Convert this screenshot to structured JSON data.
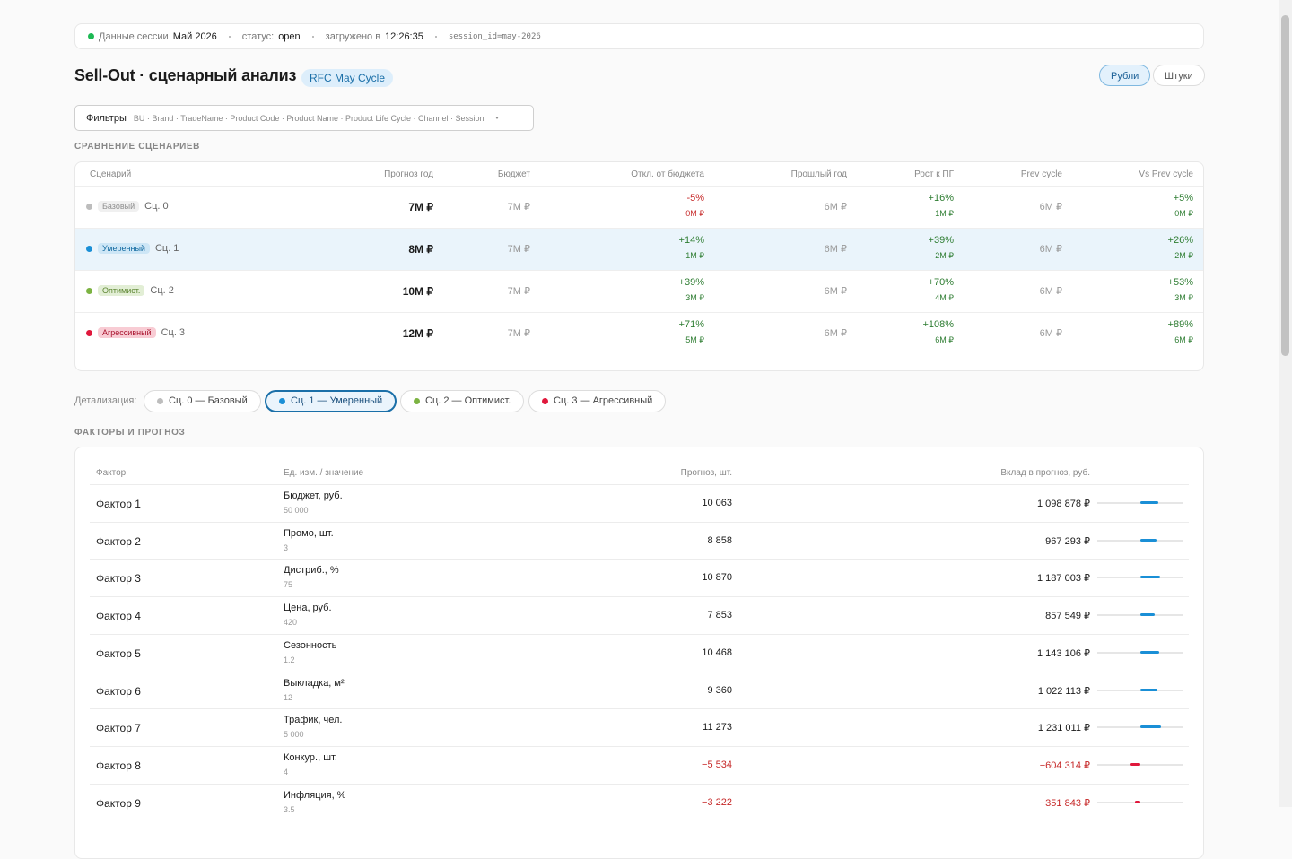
{
  "session": {
    "label": "Данные сессии",
    "period": "Май 2026",
    "status_label": "статус:",
    "status": "open",
    "loaded_label": "загружено в",
    "loaded_time": "12:26:35",
    "session_id": "session_id=may-2026"
  },
  "header": {
    "title": "Sell-Out · сценарный анализ",
    "badge": "RFC May Cycle",
    "units": [
      "Рубли",
      "Штуки"
    ],
    "active_unit": 0
  },
  "filters": {
    "label": "Фильтры",
    "fields": "BU · Brand · TradeName · Product Code · Product Name · Product Life Cycle · Channel · Session"
  },
  "comparison": {
    "title": "СРАВНЕНИЕ СЦЕНАРИЕВ",
    "columns": [
      "Сценарий",
      "Прогноз год",
      "Бюджет",
      "Откл. от бюджета",
      "Прошлый год",
      "Рост к ПГ",
      "Prev cycle",
      "Vs Prev cycle"
    ],
    "selected": 1,
    "rows": [
      {
        "color": "#bdbdbd",
        "tag": "Базовый",
        "name": "Сц. 0",
        "forecast": "7M ₽",
        "budget": "7M ₽",
        "budget_dev": "-5%",
        "budget_dev_abs": "0M ₽",
        "last_year": "6M ₽",
        "growth": "+16%",
        "growth_abs": "1M ₽",
        "prev_cycle": "6M ₽",
        "vs_prev": "+5%",
        "vs_prev_abs": "0M ₽"
      },
      {
        "color": "#1a8fd6",
        "tag": "Умеренный",
        "name": "Сц. 1",
        "forecast": "8M ₽",
        "budget": "7M ₽",
        "budget_dev": "+14%",
        "budget_dev_abs": "1M ₽",
        "last_year": "6M ₽",
        "growth": "+39%",
        "growth_abs": "2M ₽",
        "prev_cycle": "6M ₽",
        "vs_prev": "+26%",
        "vs_prev_abs": "2M ₽"
      },
      {
        "color": "#7cb342",
        "tag": "Оптимист.",
        "name": "Сц. 2",
        "forecast": "10M ₽",
        "budget": "7M ₽",
        "budget_dev": "+39%",
        "budget_dev_abs": "3M ₽",
        "last_year": "6M ₽",
        "growth": "+70%",
        "growth_abs": "4M ₽",
        "prev_cycle": "6M ₽",
        "vs_prev": "+53%",
        "vs_prev_abs": "3M ₽"
      },
      {
        "color": "#e0183c",
        "tag": "Агрессивный",
        "name": "Сц. 3",
        "forecast": "12M ₽",
        "budget": "7M ₽",
        "budget_dev": "+71%",
        "budget_dev_abs": "5M ₽",
        "last_year": "6M ₽",
        "growth": "+108%",
        "growth_abs": "6M ₽",
        "prev_cycle": "6M ₽",
        "vs_prev": "+89%",
        "vs_prev_abs": "6M ₽"
      }
    ]
  },
  "detail": {
    "label": "Детализация:",
    "chips": [
      "Сц. 0 — Базовый",
      "Сц. 1 — Умеренный",
      "Сц. 2 — Оптимист.",
      "Сц. 3 — Агрессивный"
    ],
    "selected": 1
  },
  "factors": {
    "title": "ФАКТОРЫ И ПРОГНОЗ",
    "columns": [
      "Фактор",
      "Ед. изм. / значение",
      "Прогноз, шт.",
      "Вклад в прогноз, руб."
    ],
    "positive_color": "#1a8fd6",
    "negative_color": "#e0183c",
    "rows": [
      {
        "name": "Фактор 1",
        "unit": "Бюджет, руб.",
        "value": "50 000",
        "forecast": "10 063",
        "contribution": {
          "value": 1098878,
          "label": "1 098 878 ₽"
        }
      },
      {
        "name": "Фактор 2",
        "unit": "Промо, шт.",
        "value": "3",
        "forecast": "8 858",
        "contribution": {
          "value": 967293,
          "label": "967 293 ₽"
        }
      },
      {
        "name": "Фактор 3",
        "unit": "Дистриб., %",
        "value": "75",
        "forecast": "10 870",
        "contribution": {
          "value": 1187003,
          "label": "1 187 003 ₽"
        }
      },
      {
        "name": "Фактор 4",
        "unit": "Цена, руб.",
        "value": "420",
        "forecast": "7 853",
        "contribution": {
          "value": 857549,
          "label": "857 549 ₽"
        }
      },
      {
        "name": "Фактор 5",
        "unit": "Сезонность",
        "value": "1.2",
        "forecast": "10 468",
        "contribution": {
          "value": 1143106,
          "label": "1 143 106 ₽"
        }
      },
      {
        "name": "Фактор 6",
        "unit": "Выкладка, м²",
        "value": "12",
        "forecast": "9 360",
        "contribution": {
          "value": 1022113,
          "label": "1 022 113 ₽"
        }
      },
      {
        "name": "Фактор 7",
        "unit": "Трафик, чел.",
        "value": "5 000",
        "forecast": "11 273",
        "contribution": {
          "value": 1231011,
          "label": "1 231 011 ₽"
        }
      },
      {
        "name": "Фактор 8",
        "unit": "Конкур., шт.",
        "value": "4",
        "forecast": "−5 534",
        "contribution": {
          "value": -604314,
          "label": "−604 314 ₽"
        }
      },
      {
        "name": "Фактор 9",
        "unit": "Инфляция, %",
        "value": "3.5",
        "forecast": "−3 222",
        "contribution": {
          "value": -351843,
          "label": "−351 843 ₽"
        }
      }
    ]
  }
}
